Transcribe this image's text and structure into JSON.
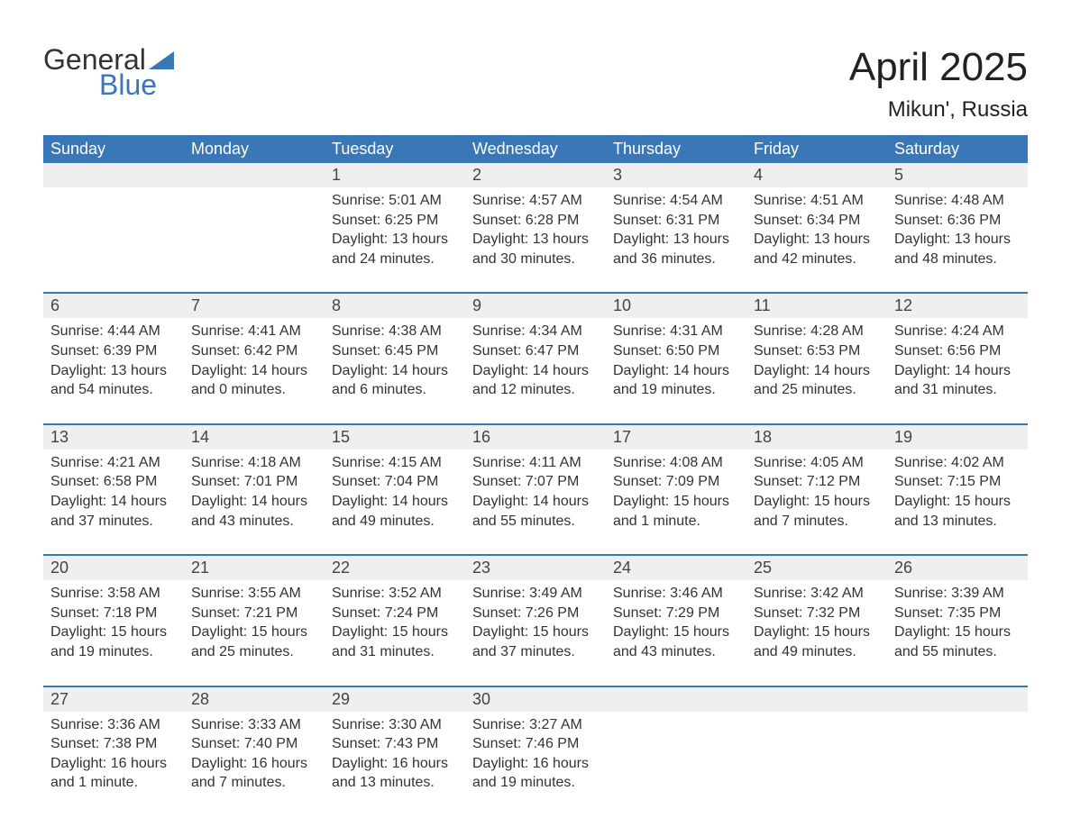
{
  "logo": {
    "word1": "General",
    "word2": "Blue"
  },
  "title": "April 2025",
  "location": "Mikun', Russia",
  "colors": {
    "header_bg": "#3a77b7",
    "header_text": "#ffffff",
    "daynum_bg": "#efefef",
    "border_top": "#3a77b7",
    "body_text": "#333333",
    "page_bg": "#ffffff",
    "logo_blue": "#3a77b7"
  },
  "typography": {
    "title_fontsize": 44,
    "location_fontsize": 24,
    "header_fontsize": 18,
    "daynum_fontsize": 18,
    "cell_fontsize": 16,
    "font_family": "Arial"
  },
  "dayHeaders": [
    "Sunday",
    "Monday",
    "Tuesday",
    "Wednesday",
    "Thursday",
    "Friday",
    "Saturday"
  ],
  "weeks": [
    [
      null,
      null,
      {
        "n": "1",
        "sunrise": "5:01 AM",
        "sunset": "6:25 PM",
        "daylight": "13 hours and 24 minutes."
      },
      {
        "n": "2",
        "sunrise": "4:57 AM",
        "sunset": "6:28 PM",
        "daylight": "13 hours and 30 minutes."
      },
      {
        "n": "3",
        "sunrise": "4:54 AM",
        "sunset": "6:31 PM",
        "daylight": "13 hours and 36 minutes."
      },
      {
        "n": "4",
        "sunrise": "4:51 AM",
        "sunset": "6:34 PM",
        "daylight": "13 hours and 42 minutes."
      },
      {
        "n": "5",
        "sunrise": "4:48 AM",
        "sunset": "6:36 PM",
        "daylight": "13 hours and 48 minutes."
      }
    ],
    [
      {
        "n": "6",
        "sunrise": "4:44 AM",
        "sunset": "6:39 PM",
        "daylight": "13 hours and 54 minutes."
      },
      {
        "n": "7",
        "sunrise": "4:41 AM",
        "sunset": "6:42 PM",
        "daylight": "14 hours and 0 minutes."
      },
      {
        "n": "8",
        "sunrise": "4:38 AM",
        "sunset": "6:45 PM",
        "daylight": "14 hours and 6 minutes."
      },
      {
        "n": "9",
        "sunrise": "4:34 AM",
        "sunset": "6:47 PM",
        "daylight": "14 hours and 12 minutes."
      },
      {
        "n": "10",
        "sunrise": "4:31 AM",
        "sunset": "6:50 PM",
        "daylight": "14 hours and 19 minutes."
      },
      {
        "n": "11",
        "sunrise": "4:28 AM",
        "sunset": "6:53 PM",
        "daylight": "14 hours and 25 minutes."
      },
      {
        "n": "12",
        "sunrise": "4:24 AM",
        "sunset": "6:56 PM",
        "daylight": "14 hours and 31 minutes."
      }
    ],
    [
      {
        "n": "13",
        "sunrise": "4:21 AM",
        "sunset": "6:58 PM",
        "daylight": "14 hours and 37 minutes."
      },
      {
        "n": "14",
        "sunrise": "4:18 AM",
        "sunset": "7:01 PM",
        "daylight": "14 hours and 43 minutes."
      },
      {
        "n": "15",
        "sunrise": "4:15 AM",
        "sunset": "7:04 PM",
        "daylight": "14 hours and 49 minutes."
      },
      {
        "n": "16",
        "sunrise": "4:11 AM",
        "sunset": "7:07 PM",
        "daylight": "14 hours and 55 minutes."
      },
      {
        "n": "17",
        "sunrise": "4:08 AM",
        "sunset": "7:09 PM",
        "daylight": "15 hours and 1 minute."
      },
      {
        "n": "18",
        "sunrise": "4:05 AM",
        "sunset": "7:12 PM",
        "daylight": "15 hours and 7 minutes."
      },
      {
        "n": "19",
        "sunrise": "4:02 AM",
        "sunset": "7:15 PM",
        "daylight": "15 hours and 13 minutes."
      }
    ],
    [
      {
        "n": "20",
        "sunrise": "3:58 AM",
        "sunset": "7:18 PM",
        "daylight": "15 hours and 19 minutes."
      },
      {
        "n": "21",
        "sunrise": "3:55 AM",
        "sunset": "7:21 PM",
        "daylight": "15 hours and 25 minutes."
      },
      {
        "n": "22",
        "sunrise": "3:52 AM",
        "sunset": "7:24 PM",
        "daylight": "15 hours and 31 minutes."
      },
      {
        "n": "23",
        "sunrise": "3:49 AM",
        "sunset": "7:26 PM",
        "daylight": "15 hours and 37 minutes."
      },
      {
        "n": "24",
        "sunrise": "3:46 AM",
        "sunset": "7:29 PM",
        "daylight": "15 hours and 43 minutes."
      },
      {
        "n": "25",
        "sunrise": "3:42 AM",
        "sunset": "7:32 PM",
        "daylight": "15 hours and 49 minutes."
      },
      {
        "n": "26",
        "sunrise": "3:39 AM",
        "sunset": "7:35 PM",
        "daylight": "15 hours and 55 minutes."
      }
    ],
    [
      {
        "n": "27",
        "sunrise": "3:36 AM",
        "sunset": "7:38 PM",
        "daylight": "16 hours and 1 minute."
      },
      {
        "n": "28",
        "sunrise": "3:33 AM",
        "sunset": "7:40 PM",
        "daylight": "16 hours and 7 minutes."
      },
      {
        "n": "29",
        "sunrise": "3:30 AM",
        "sunset": "7:43 PM",
        "daylight": "16 hours and 13 minutes."
      },
      {
        "n": "30",
        "sunrise": "3:27 AM",
        "sunset": "7:46 PM",
        "daylight": "16 hours and 19 minutes."
      },
      null,
      null,
      null
    ]
  ],
  "labels": {
    "sunrise": "Sunrise:",
    "sunset": "Sunset:",
    "daylight": "Daylight:"
  }
}
